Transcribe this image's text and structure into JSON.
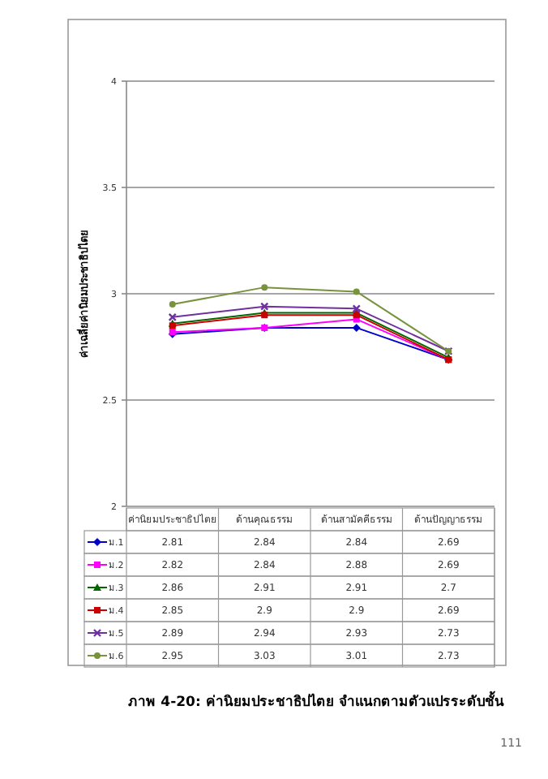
{
  "chart_data": {
    "type": "line",
    "title": "ภาพ 4-20: ค่านิยมประชาธิปไตย จำแนกตามตัวแปรระดับชั้น",
    "ylabel": "ค่าเฉลี่ยค่านิยมประชาธิปไตย",
    "categories": [
      "ค่านิยมประชาธิปไตย",
      "ด้านคุณธรรม",
      "ด้านสามัคคีธรรม",
      "ด้านปัญญาธรรม"
    ],
    "series": [
      {
        "name": "ม.1",
        "color": "#0000cc",
        "marker": "diamond",
        "values": [
          2.81,
          2.84,
          2.84,
          2.69
        ]
      },
      {
        "name": "ม.2",
        "color": "#ff00ff",
        "marker": "square",
        "values": [
          2.82,
          2.84,
          2.88,
          2.69
        ]
      },
      {
        "name": "ม.3",
        "color": "#006600",
        "marker": "triangle",
        "values": [
          2.86,
          2.91,
          2.91,
          2.7
        ]
      },
      {
        "name": "ม.4",
        "color": "#cc0000",
        "marker": "square",
        "values": [
          2.85,
          2.9,
          2.9,
          2.69
        ]
      },
      {
        "name": "ม.5",
        "color": "#7030a0",
        "marker": "cross",
        "values": [
          2.89,
          2.94,
          2.93,
          2.73
        ]
      },
      {
        "name": "ม.6",
        "color": "#77933c",
        "marker": "circle",
        "values": [
          2.95,
          3.03,
          3.01,
          2.73
        ]
      }
    ],
    "ylim": [
      2,
      4
    ],
    "yticks": [
      2,
      2.5,
      3,
      3.5,
      4
    ],
    "grid": "y",
    "legend": "bottom left",
    "data_labels": true,
    "annotations": [
      "111"
    ]
  }
}
